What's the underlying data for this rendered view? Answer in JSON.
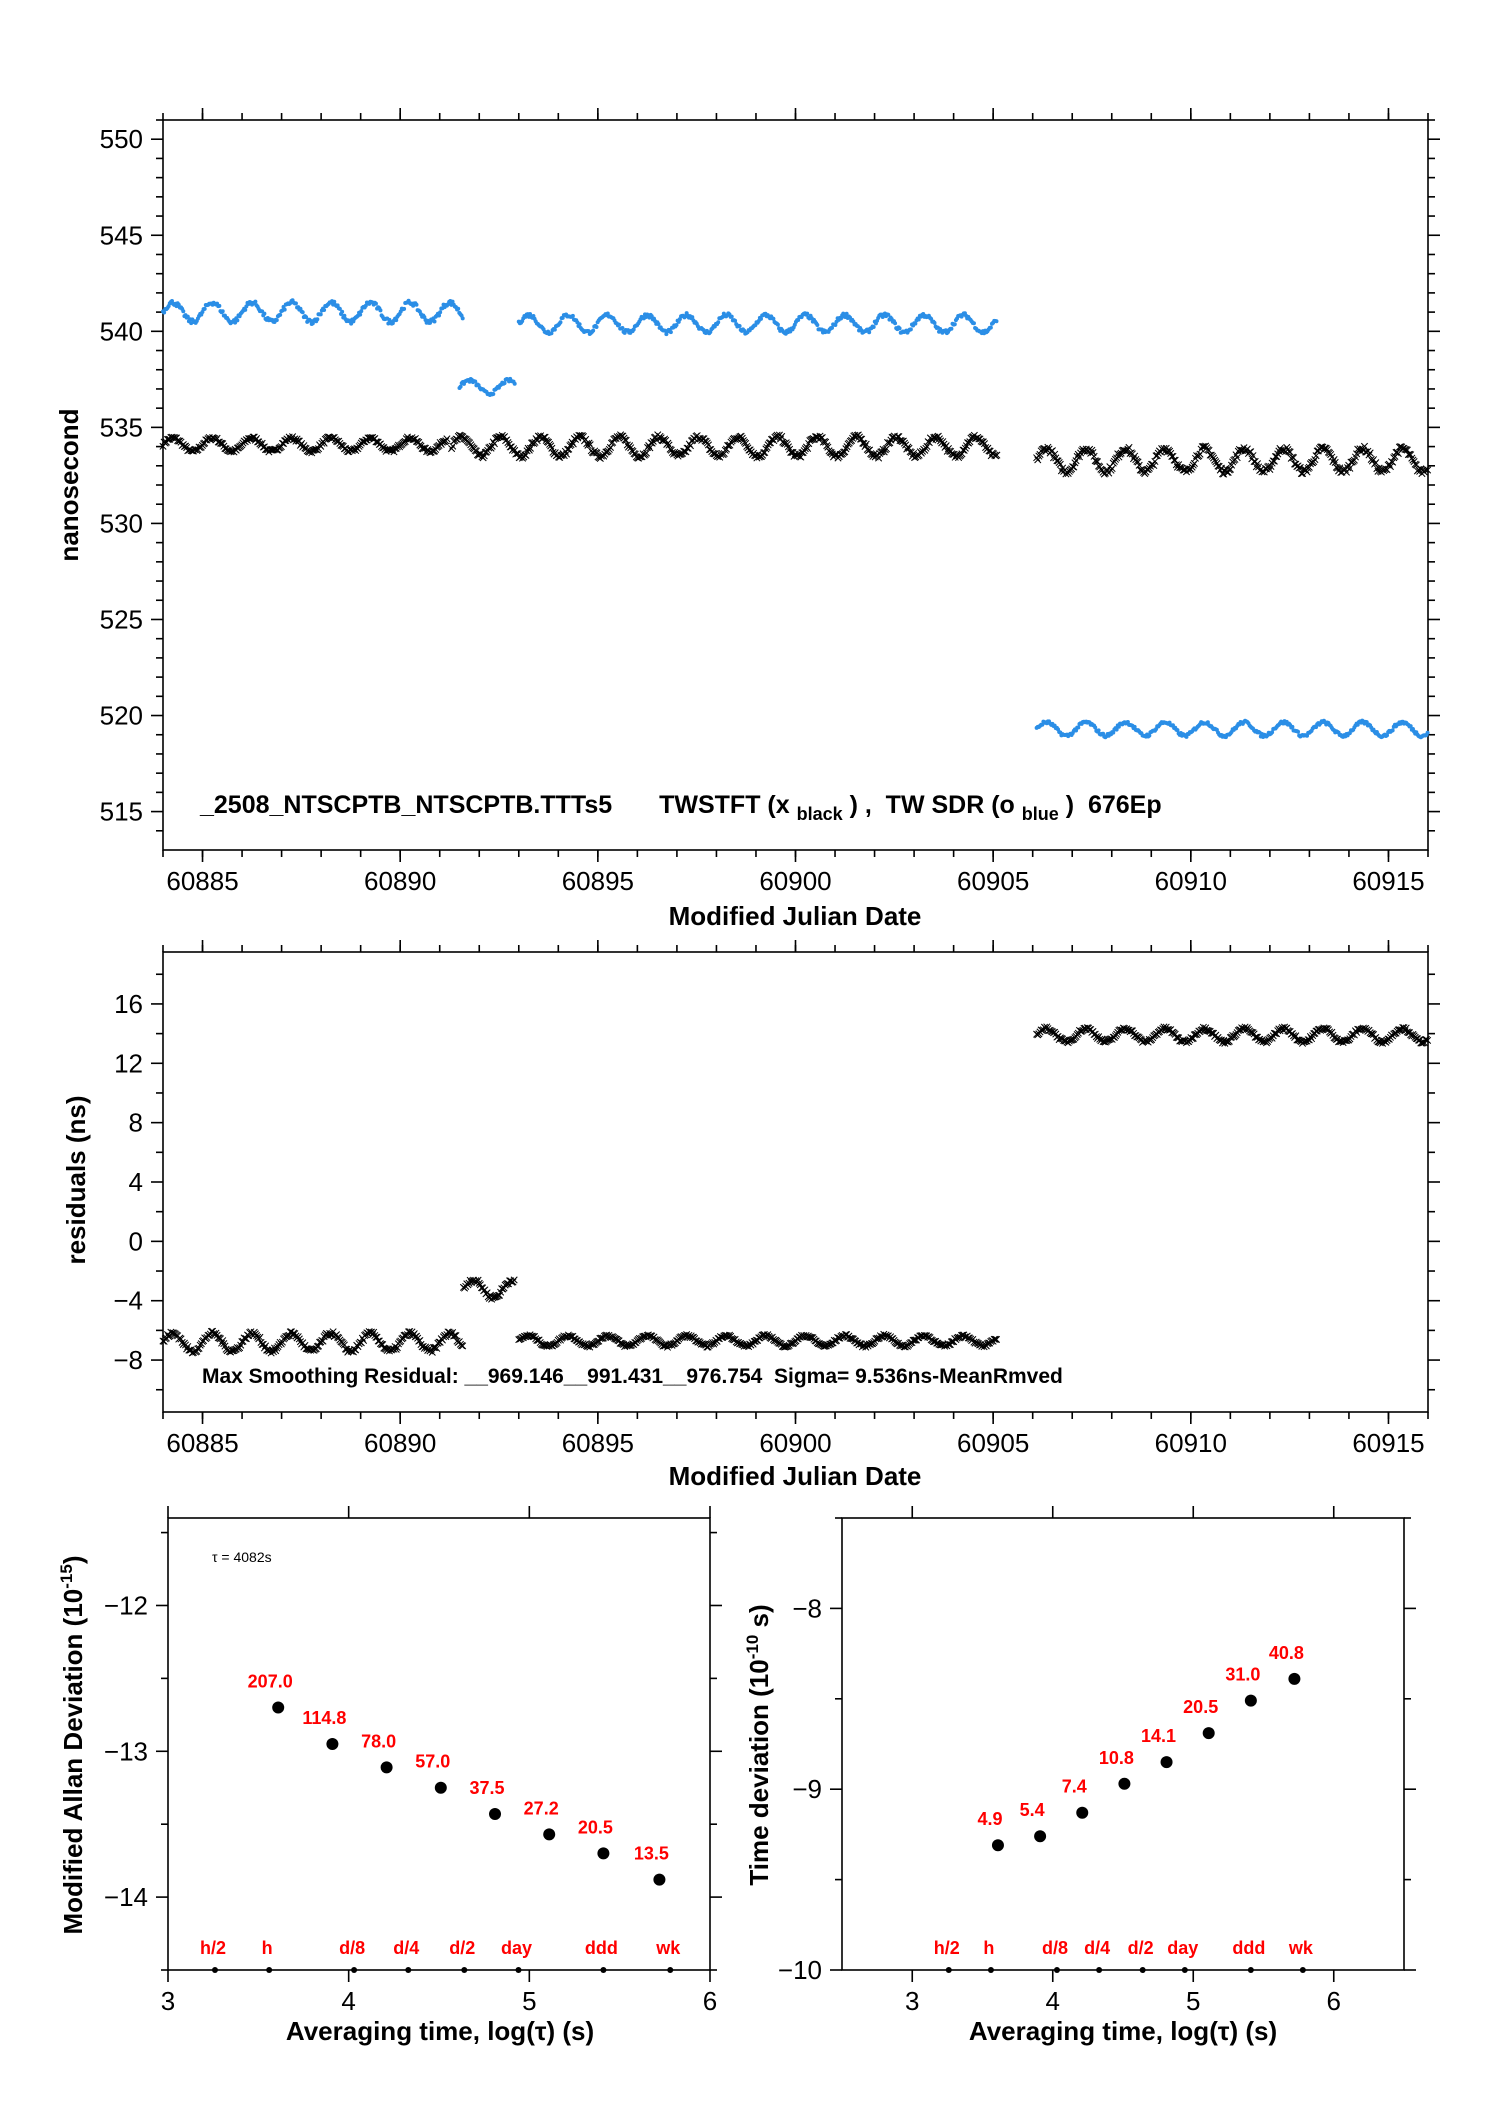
{
  "colors": {
    "black_series": "#000000",
    "blue_series": "#2b8ee6",
    "labels": "#ff0000"
  },
  "chart_data": [
    {
      "type": "scatter",
      "ylabel": "nanosecond",
      "xlabel": "Modified Julian Date",
      "xlim": [
        60884,
        60916
      ],
      "ylim": [
        513,
        551
      ],
      "x_ticks": [
        60885,
        60890,
        60895,
        60900,
        60905,
        60910,
        60915
      ],
      "y_ticks": [
        515,
        520,
        525,
        530,
        535,
        540,
        545,
        550
      ],
      "annotation": {
        "file": "_2508_NTSCPTB_NTSCPTB.TTTs5",
        "tw_prefix": "TWSTFT (x",
        "tw_sub": "black",
        "tw_mid": ") ,  TW SDR (o",
        "tw_sub2": "blue",
        "tw_suffix": ")  676Ep"
      },
      "series": [
        {
          "name": "TWSTFT",
          "marker": "x",
          "segments": [
            {
              "x": [
                60884.0,
                60891.2
              ],
              "base": 534.1,
              "amp": 0.35,
              "period": 1.0
            },
            {
              "x": [
                60891.3,
                60905.1
              ],
              "base": 534.0,
              "amp": 0.5,
              "period": 1.0
            },
            {
              "x": [
                60906.1,
                60916.0
              ],
              "base": 533.3,
              "amp": 0.6,
              "period": 1.0
            }
          ]
        },
        {
          "name": "TW SDR",
          "marker": "o",
          "segments": [
            {
              "x": [
                60884.0,
                60891.6
              ],
              "base": 541.0,
              "amp": 0.5,
              "period": 1.0
            },
            {
              "x": [
                60891.5,
                60892.9
              ],
              "base": 537.1,
              "amp": 0.35,
              "period": 1.0
            },
            {
              "x": [
                60893.0,
                60905.1
              ],
              "base": 540.4,
              "amp": 0.45,
              "period": 1.0
            },
            {
              "x": [
                60906.1,
                60916.0
              ],
              "base": 519.3,
              "amp": 0.35,
              "period": 1.0
            }
          ]
        }
      ]
    },
    {
      "type": "scatter",
      "ylabel": "residuals (ns)",
      "xlabel": "Modified Julian Date",
      "xlim": [
        60884,
        60916
      ],
      "ylim": [
        -11.5,
        19.5
      ],
      "x_ticks": [
        60885,
        60890,
        60895,
        60900,
        60905,
        60910,
        60915
      ],
      "y_ticks": [
        -8,
        -4,
        0,
        4,
        8,
        12,
        16
      ],
      "annotation": "Max Smoothing Residual: __969.146__991.431__976.754  Sigma= 9.536ns-MeanRmved",
      "series": [
        {
          "name": "residuals",
          "marker": "x",
          "segments": [
            {
              "x": [
                60884.0,
                60891.6
              ],
              "base": -6.8,
              "amp": 0.6,
              "period": 1.0
            },
            {
              "x": [
                60891.6,
                60892.9
              ],
              "base": -3.2,
              "amp": 0.6,
              "period": 1.0
            },
            {
              "x": [
                60893.0,
                60905.1
              ],
              "base": -6.7,
              "amp": 0.35,
              "period": 1.0
            },
            {
              "x": [
                60906.1,
                60916.0
              ],
              "base": 13.9,
              "amp": 0.45,
              "period": 1.0
            }
          ]
        }
      ]
    },
    {
      "type": "scatter",
      "ylabel_main": "Modified Allan Deviation (10",
      "ylabel_sup": "-15",
      "ylabel_end": ")",
      "xlabel": "Averaging time, log(τ) (s)",
      "xlim": [
        3,
        6
      ],
      "ylim": [
        -14.5,
        -11.4
      ],
      "x_ticks": [
        3,
        4,
        5,
        6
      ],
      "y_ticks": [
        -12,
        -13,
        -14
      ],
      "tau_note": "τ = 4082s",
      "points": [
        {
          "x": 3.61,
          "y": -12.7,
          "label": "207.0"
        },
        {
          "x": 3.91,
          "y": -12.95,
          "label": "114.8"
        },
        {
          "x": 4.21,
          "y": -13.11,
          "label": "78.0"
        },
        {
          "x": 4.51,
          "y": -13.25,
          "label": "57.0"
        },
        {
          "x": 4.81,
          "y": -13.43,
          "label": "37.5"
        },
        {
          "x": 5.11,
          "y": -13.57,
          "label": "27.2"
        },
        {
          "x": 5.41,
          "y": -13.7,
          "label": "20.5"
        },
        {
          "x": 5.72,
          "y": -13.88,
          "label": "13.5"
        }
      ],
      "markers": [
        {
          "x": 3.26,
          "label": "h/2"
        },
        {
          "x": 3.56,
          "label": "h"
        },
        {
          "x": 4.03,
          "label": "d/8"
        },
        {
          "x": 4.33,
          "label": "d/4"
        },
        {
          "x": 4.64,
          "label": "d/2"
        },
        {
          "x": 4.94,
          "label": "day"
        },
        {
          "x": 5.41,
          "label": "ddd"
        },
        {
          "x": 5.78,
          "label": "wk"
        }
      ]
    },
    {
      "type": "scatter",
      "ylabel_main": "Time deviation (10",
      "ylabel_sup": "-10",
      "ylabel_end": " s)",
      "xlabel": "Averaging time, log(τ) (s)",
      "xlim": [
        2.5,
        6.5
      ],
      "ylim": [
        -10.0,
        -7.5
      ],
      "x_ticks": [
        3,
        4,
        5,
        6
      ],
      "y_ticks": [
        -8,
        -9,
        -10
      ],
      "points": [
        {
          "x": 3.61,
          "y": -9.31,
          "label": "4.9"
        },
        {
          "x": 3.91,
          "y": -9.26,
          "label": "5.4"
        },
        {
          "x": 4.21,
          "y": -9.13,
          "label": "7.4"
        },
        {
          "x": 4.51,
          "y": -8.97,
          "label": "10.8"
        },
        {
          "x": 4.81,
          "y": -8.85,
          "label": "14.1"
        },
        {
          "x": 5.11,
          "y": -8.69,
          "label": "20.5"
        },
        {
          "x": 5.41,
          "y": -8.51,
          "label": "31.0"
        },
        {
          "x": 5.72,
          "y": -8.39,
          "label": "40.8"
        }
      ],
      "markers": [
        {
          "x": 3.26,
          "label": "h/2"
        },
        {
          "x": 3.56,
          "label": "h"
        },
        {
          "x": 4.03,
          "label": "d/8"
        },
        {
          "x": 4.33,
          "label": "d/4"
        },
        {
          "x": 4.64,
          "label": "d/2"
        },
        {
          "x": 4.94,
          "label": "day"
        },
        {
          "x": 5.41,
          "label": "ddd"
        },
        {
          "x": 5.78,
          "label": "wk"
        }
      ]
    }
  ]
}
